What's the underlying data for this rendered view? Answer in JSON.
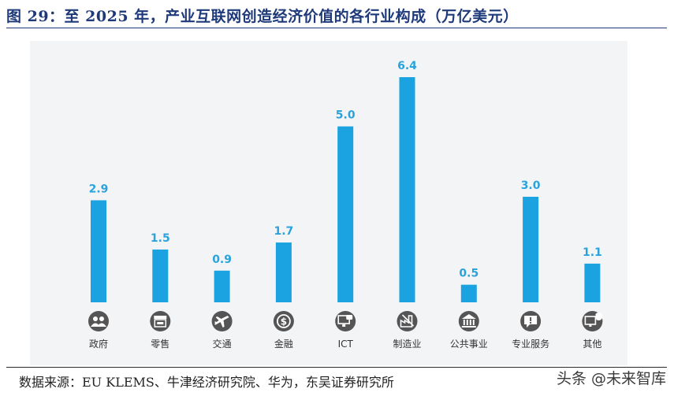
{
  "title": "图 29：至 2025 年，产业互联网创造经济价值的各行业构成（万亿美元）",
  "source": "数据来源：EU KLEMS、牛津经济研究院、华为，东吴证券研究所",
  "watermark": "头条 @未来智库",
  "colors": {
    "bar": "#1aa3e0",
    "label": "#2aa3dd",
    "icon": "#555555",
    "title": "#1f3a7a",
    "panel": "#f3f4f6"
  },
  "chart_data": {
    "type": "bar",
    "categories": [
      "政府",
      "零售",
      "交通",
      "金融",
      "ICT",
      "制造业",
      "公共事业",
      "专业服务",
      "其他"
    ],
    "values": [
      2.9,
      1.5,
      0.9,
      1.7,
      5.0,
      6.4,
      0.5,
      3.0,
      1.1
    ],
    "data_labels": [
      "2.9",
      "1.5",
      "0.9",
      "1.7",
      "5.0",
      "6.4",
      "0.5",
      "3.0",
      "1.1"
    ],
    "icons": [
      "people-icon",
      "store-icon",
      "airplane-icon",
      "dollar-coin-icon",
      "monitor-chat-icon",
      "factory-tools-icon",
      "government-building-icon",
      "chat-bubble-icon",
      "monitor-chart-icon"
    ],
    "ylim": [
      0,
      6.4
    ],
    "grid": false,
    "xlabel": "",
    "ylabel": ""
  }
}
